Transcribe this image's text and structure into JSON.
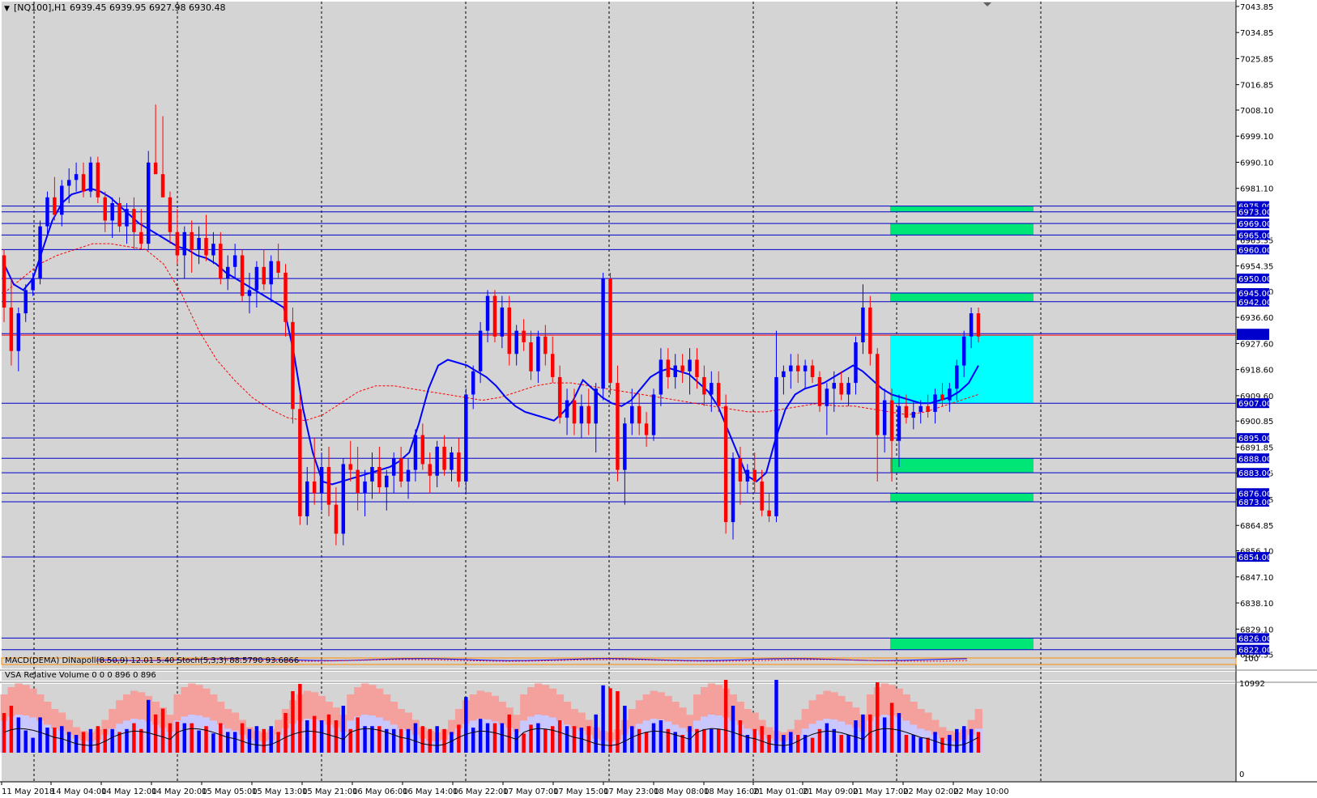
{
  "header": {
    "dropdown_icon": "triangle-down-icon",
    "symbol": "[NQ100],H1",
    "ohlc": "6939.45 6939.95 6927.98 6930.48"
  },
  "colors": {
    "background": "#d4d4d4",
    "bull": "#0000ff",
    "bear": "#ff0000",
    "level": "#0000cc",
    "zone_green": "#00e676",
    "zone_cyan": "#00ffff",
    "vsa_band": "#f4a09c",
    "vsa_band_inner": "#c8c8ff",
    "vsa_bull": "#0000ff",
    "vsa_bear": "#ff0000",
    "vsa_climax": "#ff00ff"
  },
  "macd_panel": {
    "label": "MACD(DEMA) DiNapoli(8.50,9) 12.01 5.40   Stoch(5,3,3) 88.5790 93.6866",
    "scale_top": "100",
    "scale_bottom": "0"
  },
  "vsa_panel": {
    "label": "VSA Relative Volume 0 0 0 896 0 896",
    "scale_top": "10992",
    "scale_bottom": "0"
  },
  "chart_data": {
    "type": "candlestick",
    "symbol": "[NQ100]",
    "timeframe": "H1",
    "ylim": [
      6815.5,
      7045.5
    ],
    "y_ticks": [
      "7043.85",
      "7034.85",
      "7025.85",
      "7016.85",
      "7008.10",
      "6999.10",
      "6990.10",
      "6981.10",
      "6963.35",
      "6954.35",
      "6945.60",
      "6936.60",
      "6927.60",
      "6918.60",
      "6909.60",
      "6900.85",
      "6891.85",
      "6882.85",
      "6873.85",
      "6864.85",
      "6856.10",
      "6847.10",
      "6838.10",
      "6829.10",
      "6820.35"
    ],
    "x_labels": [
      "11 May 2018",
      "14 May 04:00",
      "14 May 12:00",
      "14 May 20:00",
      "15 May 05:00",
      "15 May 13:00",
      "15 May 21:00",
      "16 May 06:00",
      "16 May 14:00",
      "16 May 22:00",
      "17 May 07:00",
      "17 May 15:00",
      "17 May 23:00",
      "18 May 08:00",
      "18 May 16:00",
      "21 May 01:00",
      "21 May 09:00",
      "21 May 17:00",
      "22 May 02:00",
      "22 May 10:00"
    ],
    "levels": [
      "6975.00",
      "6973.00",
      "6969.00",
      "6965.00",
      "6960.00",
      "6950.00",
      "6945.00",
      "6942.00",
      "6931.00",
      "6907.00",
      "6895.00",
      "6888.00",
      "6883.00",
      "6876.00",
      "6873.00",
      "6854.00",
      "6826.00",
      "6822.00"
    ],
    "current_price": "6930.48",
    "zones": [
      {
        "kind": "green",
        "top": 6975,
        "bottom": 6973
      },
      {
        "kind": "green",
        "top": 6969,
        "bottom": 6965
      },
      {
        "kind": "green",
        "top": 6945,
        "bottom": 6942
      },
      {
        "kind": "cyan",
        "top": 6930.5,
        "bottom": 6907
      },
      {
        "kind": "green",
        "top": 6888,
        "bottom": 6883
      },
      {
        "kind": "green",
        "top": 6876,
        "bottom": 6873
      },
      {
        "kind": "green",
        "top": 6826,
        "bottom": 6822
      }
    ],
    "candles": [
      [
        6958,
        6960,
        6935,
        6940
      ],
      [
        6940,
        6950,
        6920,
        6925
      ],
      [
        6925,
        6940,
        6918,
        6938
      ],
      [
        6938,
        6948,
        6935,
        6946
      ],
      [
        6946,
        6952,
        6944,
        6950
      ],
      [
        6950,
        6970,
        6948,
        6968
      ],
      [
        6968,
        6980,
        6965,
        6978
      ],
      [
        6978,
        6985,
        6970,
        6972
      ],
      [
        6972,
        6984,
        6968,
        6982
      ],
      [
        6982,
        6988,
        6976,
        6984
      ],
      [
        6984,
        6990,
        6980,
        6986
      ],
      [
        6986,
        6990,
        6978,
        6980
      ],
      [
        6980,
        6992,
        6978,
        6990
      ],
      [
        6990,
        6992,
        6976,
        6978
      ],
      [
        6978,
        6980,
        6966,
        6970
      ],
      [
        6970,
        6978,
        6964,
        6976
      ],
      [
        6976,
        6978,
        6966,
        6968
      ],
      [
        6968,
        6976,
        6962,
        6974
      ],
      [
        6974,
        6978,
        6960,
        6966
      ],
      [
        6966,
        6974,
        6960,
        6962
      ],
      [
        6962,
        6994,
        6960,
        6990
      ],
      [
        6990,
        7010,
        6986,
        6986
      ],
      [
        6986,
        7006,
        6978,
        6978
      ],
      [
        6978,
        6980,
        6962,
        6966
      ],
      [
        6966,
        6974,
        6955,
        6958
      ],
      [
        6958,
        6968,
        6950,
        6966
      ],
      [
        6966,
        6970,
        6952,
        6960
      ],
      [
        6960,
        6968,
        6955,
        6964
      ],
      [
        6964,
        6972,
        6956,
        6958
      ],
      [
        6958,
        6966,
        6955,
        6962
      ],
      [
        6962,
        6966,
        6948,
        6950
      ],
      [
        6950,
        6958,
        6946,
        6954
      ],
      [
        6954,
        6962,
        6950,
        6958
      ],
      [
        6958,
        6960,
        6942,
        6944
      ],
      [
        6944,
        6952,
        6938,
        6946
      ],
      [
        6946,
        6956,
        6940,
        6954
      ],
      [
        6954,
        6960,
        6946,
        6948
      ],
      [
        6948,
        6958,
        6942,
        6956
      ],
      [
        6956,
        6962,
        6950,
        6952
      ],
      [
        6952,
        6955,
        6930,
        6935
      ],
      [
        6935,
        6940,
        6900,
        6905
      ],
      [
        6905,
        6910,
        6865,
        6868
      ],
      [
        6868,
        6885,
        6865,
        6880
      ],
      [
        6880,
        6895,
        6872,
        6876
      ],
      [
        6876,
        6890,
        6870,
        6885
      ],
      [
        6885,
        6892,
        6868,
        6872
      ],
      [
        6872,
        6878,
        6858,
        6862
      ],
      [
        6862,
        6888,
        6858,
        6886
      ],
      [
        6886,
        6894,
        6880,
        6884
      ],
      [
        6884,
        6892,
        6870,
        6876
      ],
      [
        6876,
        6884,
        6868,
        6880
      ],
      [
        6880,
        6890,
        6874,
        6885
      ],
      [
        6885,
        6892,
        6876,
        6878
      ],
      [
        6878,
        6884,
        6870,
        6882
      ],
      [
        6882,
        6890,
        6876,
        6888
      ],
      [
        6888,
        6892,
        6878,
        6880
      ],
      [
        6880,
        6888,
        6874,
        6884
      ],
      [
        6884,
        6898,
        6880,
        6896
      ],
      [
        6896,
        6900,
        6884,
        6886
      ],
      [
        6886,
        6890,
        6876,
        6882
      ],
      [
        6882,
        6894,
        6878,
        6892
      ],
      [
        6892,
        6896,
        6882,
        6884
      ],
      [
        6884,
        6892,
        6880,
        6890
      ],
      [
        6890,
        6895,
        6878,
        6880
      ],
      [
        6880,
        6912,
        6876,
        6910
      ],
      [
        6910,
        6920,
        6905,
        6918
      ],
      [
        6918,
        6935,
        6914,
        6932
      ],
      [
        6932,
        6946,
        6928,
        6944
      ],
      [
        6944,
        6946,
        6928,
        6930
      ],
      [
        6930,
        6944,
        6926,
        6940
      ],
      [
        6940,
        6944,
        6920,
        6924
      ],
      [
        6924,
        6934,
        6920,
        6932
      ],
      [
        6932,
        6936,
        6925,
        6928
      ],
      [
        6928,
        6932,
        6915,
        6918
      ],
      [
        6918,
        6932,
        6914,
        6930
      ],
      [
        6930,
        6934,
        6920,
        6924
      ],
      [
        6924,
        6930,
        6914,
        6916
      ],
      [
        6916,
        6920,
        6900,
        6902
      ],
      [
        6902,
        6912,
        6896,
        6908
      ],
      [
        6908,
        6912,
        6896,
        6900
      ],
      [
        6900,
        6910,
        6895,
        6906
      ],
      [
        6906,
        6912,
        6896,
        6900
      ],
      [
        6900,
        6914,
        6890,
        6912
      ],
      [
        6912,
        6952,
        6908,
        6950
      ],
      [
        6950,
        6952,
        6910,
        6914
      ],
      [
        6914,
        6920,
        6880,
        6884
      ],
      [
        6884,
        6902,
        6872,
        6900
      ],
      [
        6900,
        6912,
        6896,
        6906
      ],
      [
        6906,
        6910,
        6896,
        6900
      ],
      [
        6900,
        6904,
        6892,
        6896
      ],
      [
        6896,
        6912,
        6894,
        6910
      ],
      [
        6910,
        6926,
        6906,
        6922
      ],
      [
        6922,
        6926,
        6912,
        6916
      ],
      [
        6916,
        6924,
        6912,
        6920
      ],
      [
        6920,
        6924,
        6914,
        6918
      ],
      [
        6918,
        6926,
        6910,
        6922
      ],
      [
        6922,
        6926,
        6912,
        6916
      ],
      [
        6916,
        6920,
        6906,
        6910
      ],
      [
        6910,
        6918,
        6904,
        6914
      ],
      [
        6914,
        6918,
        6904,
        6906
      ],
      [
        6906,
        6910,
        6862,
        6866
      ],
      [
        6866,
        6890,
        6860,
        6888
      ],
      [
        6888,
        6892,
        6872,
        6880
      ],
      [
        6880,
        6886,
        6876,
        6884
      ],
      [
        6884,
        6890,
        6876,
        6880
      ],
      [
        6880,
        6884,
        6868,
        6870
      ],
      [
        6870,
        6876,
        6866,
        6868
      ],
      [
        6868,
        6932,
        6866,
        6916
      ],
      [
        6916,
        6920,
        6910,
        6918
      ],
      [
        6918,
        6924,
        6912,
        6920
      ],
      [
        6920,
        6924,
        6914,
        6918
      ],
      [
        6918,
        6922,
        6912,
        6920
      ],
      [
        6920,
        6922,
        6914,
        6916
      ],
      [
        6916,
        6918,
        6904,
        6906
      ],
      [
        6906,
        6914,
        6896,
        6912
      ],
      [
        6912,
        6918,
        6904,
        6914
      ],
      [
        6914,
        6918,
        6908,
        6910
      ],
      [
        6910,
        6916,
        6906,
        6914
      ],
      [
        6914,
        6930,
        6910,
        6928
      ],
      [
        6928,
        6948,
        6924,
        6940
      ],
      [
        6940,
        6944,
        6920,
        6924
      ],
      [
        6924,
        6926,
        6880,
        6896
      ],
      [
        6896,
        6912,
        6890,
        6908
      ],
      [
        6908,
        6912,
        6880,
        6894
      ],
      [
        6894,
        6910,
        6885,
        6906
      ],
      [
        6906,
        6910,
        6900,
        6902
      ],
      [
        6902,
        6908,
        6898,
        6904
      ],
      [
        6904,
        6908,
        6900,
        6906
      ],
      [
        6906,
        6910,
        6902,
        6904
      ],
      [
        6904,
        6912,
        6900,
        6910
      ],
      [
        6910,
        6914,
        6906,
        6908
      ],
      [
        6908,
        6914,
        6904,
        6912
      ],
      [
        6912,
        6922,
        6908,
        6920
      ],
      [
        6920,
        6932,
        6916,
        6930
      ],
      [
        6930,
        6940,
        6926,
        6938
      ],
      [
        6938,
        6940,
        6928,
        6930
      ]
    ],
    "ma_fast": [
      6955,
      6948,
      6946,
      6950,
      6960,
      6970,
      6976,
      6979,
      6980,
      6981,
      6980,
      6978,
      6975,
      6972,
      6969,
      6967,
      6965,
      6963,
      6961,
      6960,
      6958,
      6957,
      6955,
      6952,
      6950,
      6948,
      6946,
      6944,
      6942,
      6940,
      6925,
      6905,
      6890,
      6880,
      6879,
      6880,
      6881,
      6882,
      6883,
      6884,
      6885,
      6887,
      6890,
      6900,
      6912,
      6920,
      6922,
      6921,
      6920,
      6918,
      6916,
      6913,
      6909,
      6906,
      6904,
      6903,
      6902,
      6901,
      6904,
      6908,
      6915,
      6912,
      6909,
      6907,
      6906,
      6908,
      6912,
      6916,
      6918,
      6919,
      6918,
      6917,
      6914,
      6911,
      6906,
      6898,
      6890,
      6882,
      6880,
      6883,
      6895,
      6905,
      6910,
      6912,
      6913,
      6914,
      6916,
      6918,
      6920,
      6918,
      6915,
      6912,
      6910,
      6909,
      6908,
      6907,
      6907,
      6908,
      6909,
      6911,
      6914,
      6920
    ],
    "ma_slow": [
      6945,
      6950,
      6955,
      6958,
      6960,
      6962,
      6962,
      6961,
      6960,
      6955,
      6945,
      6932,
      6922,
      6915,
      6909,
      6905,
      6902,
      6901,
      6903,
      6907,
      6911,
      6913,
      6913,
      6912,
      6911,
      6910,
      6909,
      6908,
      6909,
      6911,
      6913,
      6914,
      6914,
      6913,
      6912,
      6911,
      6910,
      6909,
      6908,
      6907,
      6906,
      6905,
      6904,
      6904,
      6905,
      6906,
      6907,
      6906,
      6906,
      6905,
      6904,
      6903,
      6904,
      6906,
      6908,
      6910
    ]
  }
}
